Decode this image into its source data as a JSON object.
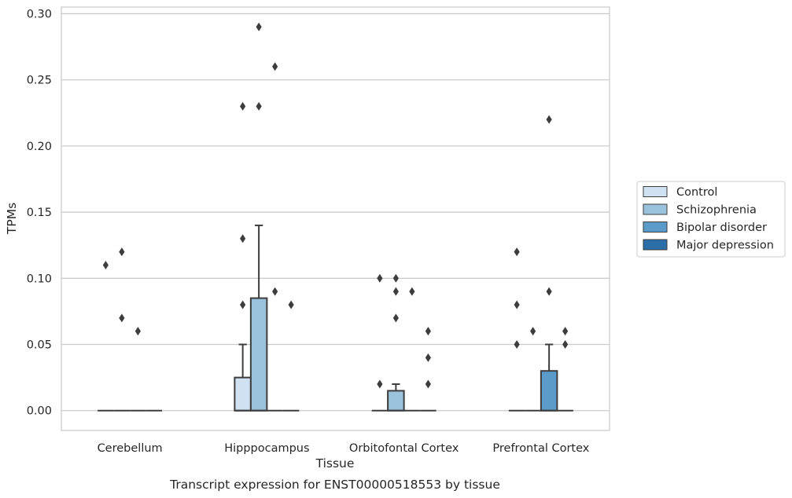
{
  "chart_data": {
    "type": "box",
    "caption": "Transcript expression for ENST00000518553 by tissue",
    "xlabel": "Tissue",
    "ylabel": "TPMs",
    "ylim": [
      -0.015,
      0.305
    ],
    "yticks": [
      0.0,
      0.05,
      0.1,
      0.15,
      0.2,
      0.25,
      0.3
    ],
    "ytick_labels": [
      "0.00",
      "0.05",
      "0.10",
      "0.15",
      "0.20",
      "0.25",
      "0.30"
    ],
    "grid": "horizontal",
    "legend_position": "right",
    "categories": [
      "Cerebellum",
      "Hipppocampus",
      "Orbitofontal Cortex",
      "Prefrontal Cortex"
    ],
    "series": [
      {
        "name": "Control",
        "color": "#d0e1f2",
        "boxes": [
          {
            "q1": 0,
            "median": 0,
            "q3": 0,
            "whisker_low": 0,
            "whisker_high": 0,
            "outliers": [
              0.11
            ]
          },
          {
            "q1": 0,
            "median": 0,
            "q3": 0.025,
            "whisker_low": 0,
            "whisker_high": 0.05,
            "outliers": [
              0.08,
              0.13,
              0.23
            ]
          },
          {
            "q1": 0,
            "median": 0,
            "q3": 0,
            "whisker_low": 0,
            "whisker_high": 0,
            "outliers": [
              0.02,
              0.1
            ]
          },
          {
            "q1": 0,
            "median": 0,
            "q3": 0,
            "whisker_low": 0,
            "whisker_high": 0,
            "outliers": [
              0.05,
              0.08,
              0.12
            ]
          }
        ]
      },
      {
        "name": "Schizophrenia",
        "color": "#9ac2dc",
        "boxes": [
          {
            "q1": 0,
            "median": 0,
            "q3": 0,
            "whisker_low": 0,
            "whisker_high": 0,
            "outliers": [
              0.07,
              0.12
            ]
          },
          {
            "q1": 0,
            "median": 0,
            "q3": 0.085,
            "whisker_low": 0,
            "whisker_high": 0.14,
            "outliers": [
              0.23,
              0.29
            ]
          },
          {
            "q1": 0,
            "median": 0,
            "q3": 0.015,
            "whisker_low": 0,
            "whisker_high": 0.02,
            "outliers": [
              0.07,
              0.09,
              0.1
            ]
          },
          {
            "q1": 0,
            "median": 0,
            "q3": 0,
            "whisker_low": 0,
            "whisker_high": 0,
            "outliers": [
              0.06
            ]
          }
        ]
      },
      {
        "name": "Bipolar disorder",
        "color": "#5b9bc9",
        "boxes": [
          {
            "q1": 0,
            "median": 0,
            "q3": 0,
            "whisker_low": 0,
            "whisker_high": 0,
            "outliers": [
              0.06
            ]
          },
          {
            "q1": 0,
            "median": 0,
            "q3": 0,
            "whisker_low": 0,
            "whisker_high": 0,
            "outliers": [
              0.09,
              0.26
            ]
          },
          {
            "q1": 0,
            "median": 0,
            "q3": 0,
            "whisker_low": 0,
            "whisker_high": 0,
            "outliers": [
              0.09
            ]
          },
          {
            "q1": 0,
            "median": 0,
            "q3": 0.03,
            "whisker_low": 0,
            "whisker_high": 0.05,
            "outliers": [
              0.09,
              0.22
            ]
          }
        ]
      },
      {
        "name": "Major depression",
        "color": "#2c6ea8",
        "boxes": [
          {
            "q1": 0,
            "median": 0,
            "q3": 0,
            "whisker_low": 0,
            "whisker_high": 0,
            "outliers": []
          },
          {
            "q1": 0,
            "median": 0,
            "q3": 0,
            "whisker_low": 0,
            "whisker_high": 0,
            "outliers": [
              0.08
            ]
          },
          {
            "q1": 0,
            "median": 0,
            "q3": 0,
            "whisker_low": 0,
            "whisker_high": 0,
            "outliers": [
              0.02,
              0.04,
              0.06
            ]
          },
          {
            "q1": 0,
            "median": 0,
            "q3": 0,
            "whisker_low": 0,
            "whisker_high": 0,
            "outliers": [
              0.05,
              0.06
            ]
          }
        ]
      }
    ]
  }
}
